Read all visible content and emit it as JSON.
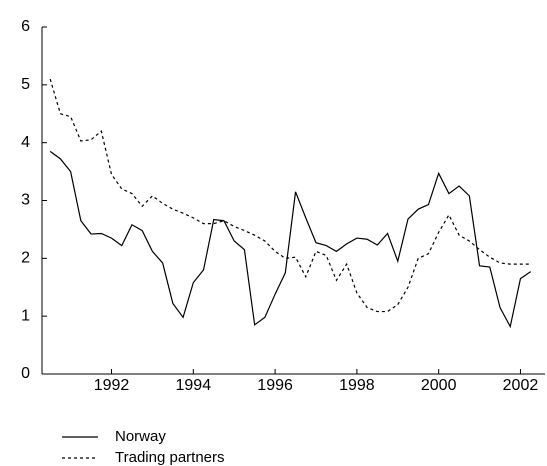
{
  "chart_data": {
    "type": "line",
    "x": [
      1990.5,
      1990.75,
      1991.0,
      1991.25,
      1991.5,
      1991.75,
      1992.0,
      1992.25,
      1992.5,
      1992.75,
      1993.0,
      1993.25,
      1993.5,
      1993.75,
      1994.0,
      1994.25,
      1994.5,
      1994.75,
      1995.0,
      1995.25,
      1995.5,
      1995.75,
      1996.0,
      1996.25,
      1996.5,
      1996.75,
      1997.0,
      1997.25,
      1997.5,
      1997.75,
      1998.0,
      1998.25,
      1998.5,
      1998.75,
      1999.0,
      1999.25,
      1999.5,
      1999.75,
      2000.0,
      2000.25,
      2000.5,
      2000.75,
      2001.0,
      2001.25,
      2001.5,
      2001.75,
      2002.0,
      2002.25
    ],
    "series": [
      {
        "name": "Norway",
        "color": "#000000",
        "dash": "solid",
        "values": [
          3.85,
          3.72,
          3.5,
          2.65,
          2.42,
          2.43,
          2.35,
          2.22,
          2.58,
          2.48,
          2.12,
          1.92,
          1.22,
          0.98,
          1.58,
          1.8,
          2.67,
          2.65,
          2.3,
          2.15,
          0.85,
          0.98,
          1.38,
          1.75,
          3.15,
          2.7,
          2.27,
          2.22,
          2.12,
          2.25,
          2.35,
          2.33,
          2.23,
          2.43,
          1.95,
          2.68,
          2.85,
          2.93,
          3.47,
          3.12,
          3.25,
          3.08,
          1.87,
          1.85,
          1.15,
          0.82,
          1.65,
          1.77
        ]
      },
      {
        "name": "Trading partners",
        "color": "#000000",
        "dash": "dotted",
        "values": [
          5.1,
          4.5,
          4.45,
          4.03,
          4.05,
          4.2,
          3.45,
          3.2,
          3.12,
          2.9,
          3.08,
          2.95,
          2.85,
          2.78,
          2.7,
          2.6,
          2.6,
          2.65,
          2.55,
          2.48,
          2.4,
          2.3,
          2.12,
          2.0,
          2.02,
          1.68,
          2.12,
          2.05,
          1.62,
          1.9,
          1.4,
          1.15,
          1.08,
          1.08,
          1.2,
          1.5,
          2.0,
          2.08,
          2.45,
          2.75,
          2.4,
          2.3,
          2.15,
          2.02,
          1.92,
          1.9,
          1.9,
          1.9
        ]
      }
    ],
    "xlim": [
      1990.3,
      2002.6
    ],
    "xticks": [
      1992,
      1994,
      1996,
      1998,
      2000,
      2002
    ],
    "ylim": [
      0,
      6
    ],
    "yticks": [
      0,
      1,
      2,
      3,
      4,
      5,
      6
    ],
    "legend": "bottom-left"
  }
}
